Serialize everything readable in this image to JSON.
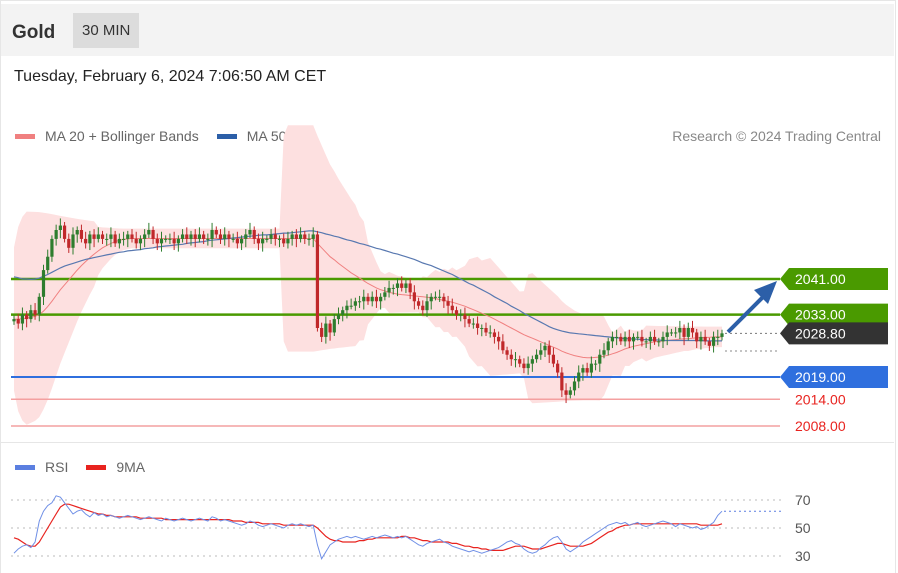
{
  "header": {
    "instrument": "Gold",
    "timeframe": "30 MIN"
  },
  "datetime": "Tuesday, February 6, 2024 7:06:50 AM CET",
  "legend_price": [
    {
      "label": "MA 20 + Bollinger Bands",
      "color": "#f08080"
    },
    {
      "label": "MA 50",
      "color": "#2c5fa8"
    }
  ],
  "credit": "Research © 2024 Trading Central",
  "legend_rsi": [
    {
      "label": "RSI",
      "color": "#5b7fe0"
    },
    {
      "label": "9MA",
      "color": "#e8231f"
    }
  ],
  "colors": {
    "up": "#2e7d2e",
    "down": "#c0282a",
    "support": "#e8231f",
    "pivot": "#2f6fde",
    "resistance": "#4a9a00",
    "arrow": "#2c5fa8"
  },
  "chart_data": [
    {
      "type": "candlestick",
      "ylim": [
        2004.5,
        2058
      ],
      "levels": [
        {
          "value": 2041.0,
          "label": "2041.00",
          "kind": "resistance"
        },
        {
          "value": 2033.0,
          "label": "2033.00",
          "kind": "resistance"
        },
        {
          "value": 2028.8,
          "label": "2028.80",
          "kind": "last"
        },
        {
          "value": 2019.0,
          "label": "2019.00",
          "kind": "pivot"
        },
        {
          "value": 2014.0,
          "label": "2014.00",
          "kind": "support"
        },
        {
          "value": 2008.0,
          "label": "2008.00",
          "kind": "support"
        }
      ],
      "close": [
        2032,
        2031,
        2033,
        2032,
        2034,
        2033,
        2037,
        2043,
        2046,
        2050,
        2052,
        2053,
        2050,
        2048,
        2051,
        2052,
        2050,
        2049,
        2051,
        2050,
        2051,
        2050,
        2050,
        2051,
        2049,
        2050,
        2050,
        2051,
        2050,
        2049,
        2050,
        2051,
        2052,
        2050,
        2049,
        2050,
        2050,
        2050,
        2049,
        2050,
        2051,
        2050,
        2051,
        2050,
        2051,
        2050,
        2050,
        2052,
        2051,
        2050,
        2051,
        2050,
        2050,
        2049,
        2050,
        2051,
        2052,
        2050,
        2049,
        2050,
        2050,
        2051,
        2050,
        2050,
        2049,
        2050,
        2051,
        2050,
        2051,
        2050,
        2050,
        2051,
        2030,
        2028,
        2031,
        2029,
        2032,
        2033,
        2034,
        2035,
        2035,
        2036,
        2036,
        2037,
        2036,
        2037,
        2036,
        2037,
        2038,
        2039,
        2039,
        2040,
        2039,
        2040,
        2038,
        2036,
        2035,
        2034,
        2036,
        2037,
        2037,
        2037,
        2036,
        2035,
        2034,
        2033,
        2033,
        2032,
        2031,
        2031,
        2030,
        2030,
        2029,
        2029,
        2028,
        2027,
        2025,
        2024,
        2023,
        2023,
        2022,
        2021,
        2022,
        2023,
        2024,
        2025,
        2026,
        2024,
        2022,
        2020,
        2016,
        2015,
        2016,
        2018,
        2020,
        2021,
        2020,
        2022,
        2022,
        2024,
        2025,
        2027,
        2028,
        2028,
        2027,
        2028,
        2027,
        2028,
        2028,
        2027,
        2027,
        2028,
        2027,
        2027,
        2028,
        2029,
        2029,
        2029,
        2030,
        2028,
        2030,
        2029,
        2027,
        2028,
        2027,
        2026,
        2028,
        2028,
        2028.8
      ],
      "ma50": [
        2041.5,
        2041.3,
        2041,
        2041,
        2040.9,
        2041,
        2041.2,
        2041.6,
        2042,
        2042.5,
        2043,
        2043.5,
        2043.9,
        2044.2,
        2044.5,
        2044.8,
        2045.1,
        2045.4,
        2045.6,
        2045.8,
        2046,
        2046.2,
        2046.4,
        2046.6,
        2046.8,
        2047,
        2047.1,
        2047.3,
        2047.4,
        2047.5,
        2047.6,
        2047.8,
        2047.9,
        2048,
        2048.2,
        2048.3,
        2048.4,
        2048.5,
        2048.6,
        2048.7,
        2048.8,
        2049,
        2049.1,
        2049.2,
        2049.3,
        2049.4,
        2049.6,
        2049.7,
        2049.8,
        2049.9,
        2050,
        2050.1,
        2050.2,
        2050.3,
        2050.4,
        2050.5,
        2050.6,
        2050.7,
        2050.8,
        2050.9,
        2050.9,
        2051,
        2051.1,
        2051.2,
        2051.3,
        2051.3,
        2051.4,
        2051.5,
        2051.6,
        2051.7,
        2051.8,
        2051.8,
        2051.6,
        2051.4,
        2051.1,
        2050.9,
        2050.6,
        2050.4,
        2050.1,
        2049.8,
        2049.6,
        2049.3,
        2049,
        2048.8,
        2048.5,
        2048.2,
        2047.9,
        2047.7,
        2047.4,
        2047.1,
        2046.8,
        2046.6,
        2046.3,
        2046,
        2045.7,
        2045.4,
        2045,
        2044.6,
        2044.3,
        2044,
        2043.6,
        2043.2,
        2042.8,
        2042.4,
        2042,
        2041.5,
        2041,
        2040.5,
        2040,
        2039.6,
        2039.1,
        2038.6,
        2038.1,
        2037.6,
        2037,
        2036.5,
        2036,
        2035.5,
        2034.9,
        2034.4,
        2033.9,
        2033.3,
        2032.8,
        2032.3,
        2031.8,
        2031.3,
        2030.8,
        2030.3,
        2029.9,
        2029.6,
        2029.3,
        2029.1,
        2028.9,
        2028.8,
        2028.7,
        2028.6,
        2028.5,
        2028.4,
        2028.3,
        2028.2,
        2028.1,
        2028,
        2027.9,
        2027.8,
        2027.7,
        2027.6,
        2027.6,
        2027.5,
        2027.5,
        2027.4,
        2027.4,
        2027.3,
        2027.3,
        2027.3,
        2027.2,
        2027.2,
        2027.2,
        2027.2,
        2027.2,
        2027.2,
        2027.2,
        2027.2,
        2027.2,
        2027.2,
        2027.1,
        2027.1,
        2027.1,
        2027.1,
        2027.1
      ],
      "ma20": [
        2032,
        2032,
        2032.1,
        2032.2,
        2032.4,
        2032.6,
        2033,
        2033.8,
        2034.8,
        2036,
        2037.3,
        2038.6,
        2039.7,
        2040.8,
        2041.9,
        2043,
        2044,
        2044.9,
        2045.8,
        2046.6,
        2047.3,
        2048,
        2048.5,
        2049,
        2049.4,
        2049.7,
        2049.9,
        2050,
        2050.1,
        2050.1,
        2050.1,
        2050.1,
        2050.1,
        2050.1,
        2050.1,
        2050.1,
        2050.1,
        2050.1,
        2050.1,
        2050.1,
        2050.1,
        2050.1,
        2050.1,
        2050.1,
        2050.1,
        2050.1,
        2050.1,
        2050.1,
        2050.1,
        2050.1,
        2050.1,
        2050.1,
        2050.1,
        2050.1,
        2050.1,
        2050.1,
        2050.1,
        2050.1,
        2050.1,
        2050.1,
        2050.1,
        2050.1,
        2050.1,
        2050.1,
        2050.1,
        2050.1,
        2050.1,
        2050.1,
        2050.1,
        2050.1,
        2050.1,
        2050.1,
        2049,
        2048,
        2047,
        2046,
        2045.3,
        2044.5,
        2043.8,
        2043.1,
        2042.4,
        2041.8,
        2041.2,
        2040.6,
        2040,
        2039.5,
        2039,
        2038.6,
        2038.3,
        2038,
        2037.8,
        2037.6,
        2037.5,
        2037.4,
        2037.3,
        2037.2,
        2037.1,
        2037,
        2036.9,
        2036.8,
        2036.6,
        2036.4,
        2036.2,
        2036,
        2035.8,
        2035.5,
        2035.2,
        2034.9,
        2034.5,
        2034.1,
        2033.7,
        2033.3,
        2032.9,
        2032.5,
        2032,
        2031.5,
        2031,
        2030.5,
        2030,
        2029.5,
        2029,
        2028.5,
        2028.1,
        2027.7,
        2027.3,
        2026.9,
        2026.5,
        2026.1,
        2025.7,
        2025.3,
        2024.8,
        2024.4,
        2024.1,
        2023.8,
        2023.6,
        2023.4,
        2023.3,
        2023.3,
        2023.4,
        2023.5,
        2023.7,
        2023.9,
        2024.2,
        2024.5,
        2024.9,
        2025.3,
        2025.6,
        2025.9,
        2026.1,
        2026.3,
        2026.5,
        2026.7,
        2026.9,
        2027,
        2027.1,
        2027.2,
        2027.3,
        2027.4,
        2027.5,
        2027.6,
        2027.6,
        2027.7,
        2027.8,
        2027.8,
        2027.9,
        2027.9,
        2028,
        2028,
        2028
      ]
    },
    {
      "type": "line",
      "ylim": [
        25,
        80
      ],
      "yticks": [
        70,
        50,
        30
      ],
      "rsi": [
        32,
        35,
        37,
        38,
        36,
        40,
        55,
        62,
        66,
        68,
        73,
        72,
        68,
        64,
        60,
        62,
        63,
        60,
        58,
        61,
        59,
        60,
        58,
        59,
        58,
        57,
        58,
        59,
        58,
        57,
        56,
        57,
        58,
        57,
        56,
        55,
        57,
        56,
        55,
        56,
        57,
        56,
        55,
        56,
        57,
        56,
        55,
        58,
        57,
        55,
        56,
        55,
        54,
        53,
        52,
        53,
        55,
        54,
        52,
        51,
        52,
        53,
        52,
        51,
        50,
        52,
        53,
        52,
        53,
        52,
        51,
        52,
        38,
        28,
        33,
        38,
        40,
        42,
        43,
        44,
        43,
        44,
        43,
        42,
        43,
        44,
        43,
        44,
        45,
        44,
        43,
        44,
        43,
        44,
        42,
        40,
        38,
        37,
        39,
        40,
        41,
        42,
        40,
        39,
        37,
        36,
        35,
        34,
        33,
        34,
        33,
        32,
        33,
        34,
        35,
        36,
        38,
        40,
        41,
        39,
        38,
        35,
        33,
        32,
        33,
        36,
        38,
        41,
        43,
        44,
        40,
        35,
        33,
        35,
        37,
        40,
        42,
        44,
        46,
        48,
        50,
        52,
        53,
        54,
        53,
        54,
        52,
        53,
        54,
        52,
        51,
        52,
        53,
        54,
        55,
        54,
        53,
        51,
        53,
        52,
        51,
        50,
        51,
        49,
        50,
        52,
        54,
        59,
        62
      ],
      "ma9": [
        43,
        42,
        40,
        38,
        37,
        37,
        40,
        45,
        50,
        55,
        60,
        65,
        67,
        67,
        66,
        65,
        64,
        63,
        62,
        61,
        60,
        60,
        59,
        59,
        58,
        58,
        58,
        58,
        58,
        58,
        57,
        57,
        57,
        57,
        57,
        57,
        56,
        56,
        56,
        56,
        56,
        56,
        56,
        56,
        56,
        56,
        56,
        56,
        56,
        56,
        56,
        56,
        55,
        55,
        55,
        54,
        54,
        54,
        54,
        53,
        53,
        53,
        53,
        53,
        52,
        52,
        52,
        52,
        52,
        52,
        52,
        52,
        50,
        47,
        44,
        42,
        41,
        41,
        40,
        40,
        40,
        40,
        41,
        41,
        42,
        42,
        43,
        43,
        43,
        43,
        43,
        43,
        44,
        44,
        43,
        43,
        42,
        41,
        41,
        40,
        40,
        40,
        40,
        40,
        39,
        39,
        38,
        37,
        37,
        36,
        36,
        35,
        35,
        34,
        34,
        34,
        34,
        35,
        36,
        37,
        37,
        37,
        36,
        35,
        35,
        35,
        36,
        37,
        38,
        39,
        39,
        38,
        37,
        37,
        37,
        37,
        38,
        39,
        41,
        43,
        45,
        47,
        48,
        50,
        51,
        52,
        52,
        53,
        53,
        53,
        53,
        53,
        53,
        53,
        53,
        53,
        53,
        53,
        53,
        53,
        53,
        53,
        53,
        52,
        52,
        52,
        52,
        52,
        53
      ]
    }
  ]
}
